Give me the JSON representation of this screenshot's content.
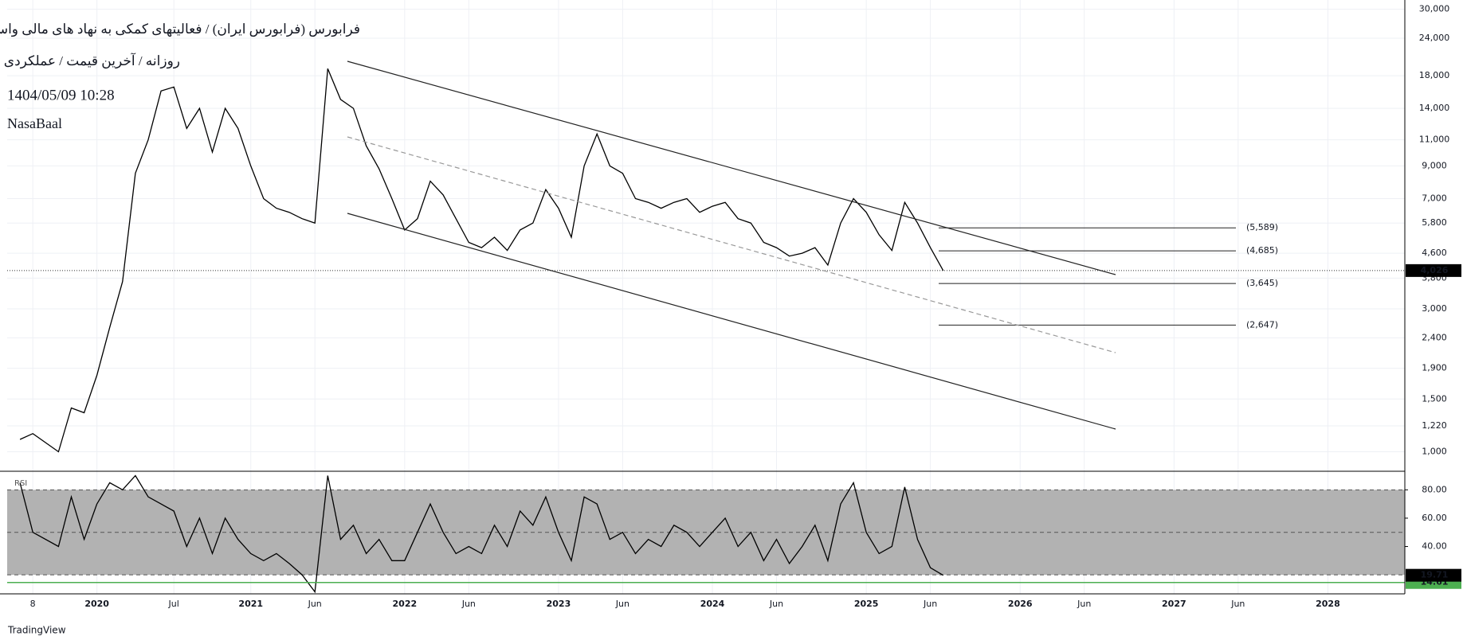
{
  "header": {
    "title": "فرابورس (فرابورس ایران) / فعالیتهای کمکی به نهاد های مالی واسط",
    "subtitle": "روزانه / آخرین قیمت / عملکردی",
    "datetime": "1404/05/09 10:28",
    "author": "NasaBaal"
  },
  "footer": {
    "brand": "TradingView"
  },
  "chart_data": [
    {
      "type": "line",
      "log_scale": true,
      "grid": true,
      "color": "#000000",
      "x": [
        "2019-07",
        "2019-08",
        "2019-10",
        "2019-11",
        "2019-12",
        "2020-01",
        "2020-02",
        "2020-03",
        "2020-04",
        "2020-05",
        "2020-06",
        "2020-07",
        "2020-08",
        "2020-09",
        "2020-10",
        "2020-11",
        "2020-12",
        "2021-01",
        "2021-02",
        "2021-03",
        "2021-04",
        "2021-05",
        "2021-06",
        "2021-07",
        "2021-08",
        "2021-09",
        "2021-10",
        "2021-11",
        "2021-12",
        "2022-01",
        "2022-02",
        "2022-03",
        "2022-04",
        "2022-05",
        "2022-06",
        "2022-07",
        "2022-08",
        "2022-09",
        "2022-10",
        "2022-11",
        "2022-12",
        "2023-01",
        "2023-02",
        "2023-03",
        "2023-04",
        "2023-05",
        "2023-06",
        "2023-07",
        "2023-08",
        "2023-09",
        "2023-10",
        "2023-11",
        "2023-12",
        "2024-01",
        "2024-02",
        "2024-03",
        "2024-04",
        "2024-05",
        "2024-06",
        "2024-07",
        "2024-08",
        "2024-09",
        "2024-10",
        "2024-11",
        "2024-12",
        "2025-01",
        "2025-02",
        "2025-03",
        "2025-04",
        "2025-05",
        "2025-06",
        "2025-07"
      ],
      "values": [
        1100,
        1150,
        1000,
        1400,
        1350,
        1800,
        2600,
        3700,
        8500,
        11000,
        16000,
        16500,
        12000,
        14000,
        10000,
        14000,
        12000,
        9000,
        7000,
        6500,
        6300,
        6000,
        5800,
        19000,
        15000,
        14000,
        10500,
        8800,
        7000,
        5500,
        6000,
        8000,
        7200,
        6000,
        5000,
        4800,
        5200,
        4700,
        5500,
        5800,
        7500,
        6500,
        5200,
        9000,
        11500,
        9000,
        8500,
        7000,
        6800,
        6500,
        6800,
        7000,
        6300,
        6600,
        6800,
        6000,
        5800,
        5000,
        4800,
        4500,
        4600,
        4800,
        4200,
        5800,
        7000,
        6300,
        5300,
        4700,
        6800,
        5800,
        4800,
        4026
      ],
      "xlim": [
        "2019-06",
        "2028-07"
      ],
      "xticks": [
        {
          "value": "2019-08",
          "label": "8"
        },
        {
          "value": "2020-01",
          "label": "2020"
        },
        {
          "value": "2020-07",
          "label": "Jul"
        },
        {
          "value": "2021-01",
          "label": "2021"
        },
        {
          "value": "2021-06",
          "label": "Jun"
        },
        {
          "value": "2022-01",
          "label": "2022"
        },
        {
          "value": "2022-06",
          "label": "Jun"
        },
        {
          "value": "2023-01",
          "label": "2023"
        },
        {
          "value": "2023-06",
          "label": "Jun"
        },
        {
          "value": "2024-01",
          "label": "2024"
        },
        {
          "value": "2024-06",
          "label": "Jun"
        },
        {
          "value": "2025-01",
          "label": "2025"
        },
        {
          "value": "2025-06",
          "label": "Jun"
        },
        {
          "value": "2026-01",
          "label": "2026"
        },
        {
          "value": "2026-06",
          "label": "Jun"
        },
        {
          "value": "2027-01",
          "label": "2027"
        },
        {
          "value": "2027-06",
          "label": "Jun"
        },
        {
          "value": "2028-01",
          "label": "2028"
        }
      ],
      "ylim": [
        861,
        32200
      ],
      "yticks": [
        {
          "value": 1000,
          "label": "1,000"
        },
        {
          "value": 1220,
          "label": "1,220"
        },
        {
          "value": 1500,
          "label": "1,500"
        },
        {
          "value": 1900,
          "label": "1,900"
        },
        {
          "value": 2400,
          "label": "2,400"
        },
        {
          "value": 3000,
          "label": "3,000"
        },
        {
          "value": 3800,
          "label": "3,800"
        },
        {
          "value": 4600,
          "label": "4,600"
        },
        {
          "value": 5800,
          "label": "5,800"
        },
        {
          "value": 7000,
          "label": "7,000"
        },
        {
          "value": 9000,
          "label": "9,000"
        },
        {
          "value": 11000,
          "label": "11,000"
        },
        {
          "value": 14000,
          "label": "14,000"
        },
        {
          "value": 18000,
          "label": "18,000"
        },
        {
          "value": 24000,
          "label": "24,000"
        },
        {
          "value": 30000,
          "label": "30,000"
        }
      ],
      "last_price": {
        "value": 4026,
        "label": "4,026"
      },
      "levels": [
        {
          "value": 5589,
          "label": "(5,589)"
        },
        {
          "value": 4685,
          "label": "(4,685)"
        },
        {
          "value": 3645,
          "label": "(3,645)"
        },
        {
          "value": 2647,
          "label": "(2,647)"
        }
      ]
    },
    {
      "type": "line",
      "name": "RSI",
      "color": "#000000",
      "x": [
        "2019-07",
        "2019-08",
        "2019-10",
        "2019-11",
        "2019-12",
        "2020-01",
        "2020-02",
        "2020-03",
        "2020-04",
        "2020-05",
        "2020-06",
        "2020-07",
        "2020-08",
        "2020-09",
        "2020-10",
        "2020-11",
        "2020-12",
        "2021-01",
        "2021-02",
        "2021-03",
        "2021-04",
        "2021-05",
        "2021-06",
        "2021-07",
        "2021-08",
        "2021-09",
        "2021-10",
        "2021-11",
        "2021-12",
        "2022-01",
        "2022-02",
        "2022-03",
        "2022-04",
        "2022-05",
        "2022-06",
        "2022-07",
        "2022-08",
        "2022-09",
        "2022-10",
        "2022-11",
        "2022-12",
        "2023-01",
        "2023-02",
        "2023-03",
        "2023-04",
        "2023-05",
        "2023-06",
        "2023-07",
        "2023-08",
        "2023-09",
        "2023-10",
        "2023-11",
        "2023-12",
        "2024-01",
        "2024-02",
        "2024-03",
        "2024-04",
        "2024-05",
        "2024-06",
        "2024-07",
        "2024-08",
        "2024-09",
        "2024-10",
        "2024-11",
        "2024-12",
        "2025-01",
        "2025-02",
        "2025-03",
        "2025-04",
        "2025-05",
        "2025-06",
        "2025-07"
      ],
      "values": [
        85,
        50,
        40,
        75,
        45,
        70,
        85,
        80,
        90,
        75,
        70,
        65,
        40,
        60,
        35,
        60,
        45,
        35,
        30,
        35,
        28,
        20,
        8,
        90,
        45,
        55,
        35,
        45,
        30,
        30,
        50,
        70,
        50,
        35,
        40,
        35,
        55,
        40,
        65,
        55,
        75,
        50,
        30,
        75,
        70,
        45,
        50,
        35,
        45,
        40,
        55,
        50,
        40,
        50,
        60,
        40,
        50,
        30,
        45,
        28,
        40,
        55,
        30,
        70,
        85,
        50,
        35,
        40,
        82,
        45,
        25,
        19.71
      ],
      "ylim": [
        6.6,
        93.1
      ],
      "yticks": [
        {
          "value": 80,
          "label": "80.00"
        },
        {
          "value": 60,
          "label": "60.00"
        },
        {
          "value": 40,
          "label": "40.00"
        }
      ],
      "levels": [
        80,
        50,
        20
      ],
      "ma_last": {
        "value": 14.61,
        "label": "14.61",
        "color": "#4caf50"
      },
      "last_value": {
        "value": 19.71,
        "label": "19.71"
      }
    }
  ]
}
